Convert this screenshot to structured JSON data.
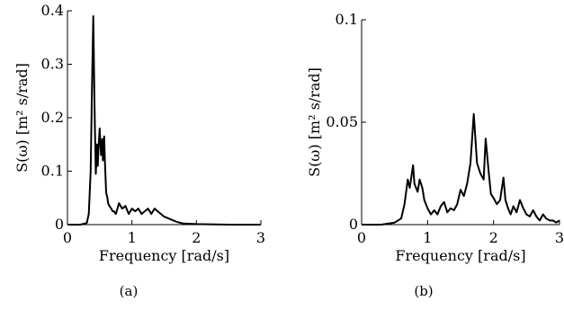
{
  "chart_data": [
    {
      "type": "line",
      "caption": "(a)",
      "xlabel": "Frequency [rad/s]",
      "ylabel": "S(ω) [m² s/rad]",
      "xlim": [
        0,
        3
      ],
      "ylim": [
        0,
        0.4
      ],
      "xticks": [
        "0",
        "1",
        "2",
        "3"
      ],
      "yticks": [
        "0",
        "0.1",
        "0.2",
        "0.3",
        "0.4"
      ],
      "xtick_values": [
        0,
        1,
        2,
        3
      ],
      "ytick_values": [
        0,
        0.1,
        0.2,
        0.3,
        0.4
      ],
      "grid": false,
      "series": [
        {
          "x": [
            0,
            0.2,
            0.3,
            0.33,
            0.36,
            0.38,
            0.4,
            0.42,
            0.44,
            0.46,
            0.47,
            0.48,
            0.5,
            0.52,
            0.54,
            0.55,
            0.56,
            0.57,
            0.58,
            0.59,
            0.6,
            0.62,
            0.63,
            0.65,
            0.68,
            0.7,
            0.72,
            0.75,
            0.8,
            0.85,
            0.9,
            0.95,
            1.0,
            1.05,
            1.1,
            1.15,
            1.2,
            1.25,
            1.3,
            1.35,
            1.4,
            1.5,
            1.6,
            1.7,
            1.8,
            2.0,
            2.5,
            3.0
          ],
          "y": [
            0,
            0,
            0.003,
            0.02,
            0.1,
            0.25,
            0.39,
            0.22,
            0.095,
            0.15,
            0.11,
            0.14,
            0.18,
            0.13,
            0.16,
            0.12,
            0.14,
            0.165,
            0.12,
            0.09,
            0.06,
            0.05,
            0.04,
            0.035,
            0.03,
            0.025,
            0.025,
            0.02,
            0.04,
            0.03,
            0.035,
            0.02,
            0.03,
            0.025,
            0.03,
            0.02,
            0.025,
            0.03,
            0.02,
            0.03,
            0.025,
            0.015,
            0.01,
            0.005,
            0.002,
            0.001,
            0,
            0
          ]
        }
      ]
    },
    {
      "type": "line",
      "caption": "(b)",
      "xlabel": "Frequency [rad/s]",
      "ylabel": "S(ω) [m² s/rad]",
      "xlim": [
        0,
        3
      ],
      "ylim": [
        0,
        0.1
      ],
      "xticks": [
        "0",
        "1",
        "2",
        "3"
      ],
      "yticks": [
        "0",
        "0.05",
        "0.1"
      ],
      "xtick_values": [
        0,
        1,
        2,
        3
      ],
      "ytick_values": [
        0,
        0.05,
        0.1
      ],
      "grid": false,
      "series": [
        {
          "x": [
            0,
            0.3,
            0.5,
            0.6,
            0.65,
            0.7,
            0.73,
            0.78,
            0.8,
            0.85,
            0.88,
            0.92,
            0.95,
            1.0,
            1.05,
            1.1,
            1.15,
            1.2,
            1.25,
            1.3,
            1.35,
            1.4,
            1.45,
            1.5,
            1.55,
            1.6,
            1.65,
            1.7,
            1.75,
            1.8,
            1.85,
            1.88,
            1.92,
            1.96,
            2.0,
            2.05,
            2.1,
            2.15,
            2.18,
            2.22,
            2.26,
            2.3,
            2.35,
            2.4,
            2.45,
            2.5,
            2.55,
            2.6,
            2.65,
            2.7,
            2.75,
            2.8,
            2.85,
            2.9,
            2.95,
            3.0
          ],
          "y": [
            0,
            0,
            0.001,
            0.003,
            0.01,
            0.022,
            0.018,
            0.029,
            0.02,
            0.016,
            0.022,
            0.018,
            0.012,
            0.008,
            0.005,
            0.007,
            0.005,
            0.009,
            0.011,
            0.006,
            0.008,
            0.007,
            0.01,
            0.017,
            0.014,
            0.02,
            0.03,
            0.054,
            0.03,
            0.025,
            0.022,
            0.042,
            0.028,
            0.015,
            0.013,
            0.01,
            0.012,
            0.023,
            0.012,
            0.008,
            0.005,
            0.009,
            0.006,
            0.012,
            0.008,
            0.005,
            0.004,
            0.007,
            0.004,
            0.002,
            0.005,
            0.003,
            0.002,
            0.002,
            0.001,
            0.002
          ]
        }
      ]
    }
  ]
}
